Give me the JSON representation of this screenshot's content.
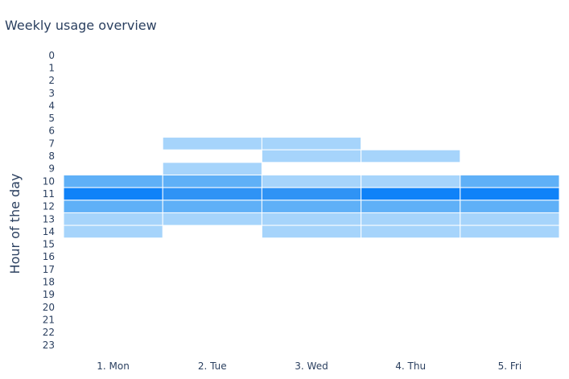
{
  "chart_data": {
    "type": "heatmap",
    "title": "Weekly usage overview",
    "xlabel": "",
    "ylabel": "Hour of the day",
    "x_categories": [
      "1. Mon",
      "2. Tue",
      "3. Wed",
      "4. Thu",
      "5. Fri"
    ],
    "y_categories": [
      "0",
      "1",
      "2",
      "3",
      "4",
      "5",
      "6",
      "7",
      "8",
      "9",
      "10",
      "11",
      "12",
      "13",
      "14",
      "15",
      "16",
      "17",
      "18",
      "19",
      "20",
      "21",
      "22",
      "23"
    ],
    "cells": [
      {
        "x": "1. Mon",
        "y": "10",
        "value": 2
      },
      {
        "x": "1. Mon",
        "y": "11",
        "value": 5
      },
      {
        "x": "1. Mon",
        "y": "12",
        "value": 2
      },
      {
        "x": "1. Mon",
        "y": "13",
        "value": 1
      },
      {
        "x": "1. Mon",
        "y": "14",
        "value": 1
      },
      {
        "x": "2. Tue",
        "y": "7",
        "value": 1
      },
      {
        "x": "2. Tue",
        "y": "9",
        "value": 1
      },
      {
        "x": "2. Tue",
        "y": "10",
        "value": 2
      },
      {
        "x": "2. Tue",
        "y": "11",
        "value": 4
      },
      {
        "x": "2. Tue",
        "y": "12",
        "value": 2
      },
      {
        "x": "2. Tue",
        "y": "13",
        "value": 1
      },
      {
        "x": "3. Wed",
        "y": "7",
        "value": 1
      },
      {
        "x": "3. Wed",
        "y": "8",
        "value": 1
      },
      {
        "x": "3. Wed",
        "y": "10",
        "value": 1
      },
      {
        "x": "3. Wed",
        "y": "11",
        "value": 4
      },
      {
        "x": "3. Wed",
        "y": "12",
        "value": 2
      },
      {
        "x": "3. Wed",
        "y": "13",
        "value": 1
      },
      {
        "x": "3. Wed",
        "y": "14",
        "value": 1
      },
      {
        "x": "4. Thu",
        "y": "8",
        "value": 1
      },
      {
        "x": "4. Thu",
        "y": "10",
        "value": 1
      },
      {
        "x": "4. Thu",
        "y": "11",
        "value": 5
      },
      {
        "x": "4. Thu",
        "y": "12",
        "value": 2
      },
      {
        "x": "4. Thu",
        "y": "13",
        "value": 1
      },
      {
        "x": "4. Thu",
        "y": "14",
        "value": 1
      },
      {
        "x": "5. Fri",
        "y": "10",
        "value": 2
      },
      {
        "x": "5. Fri",
        "y": "11",
        "value": 5
      },
      {
        "x": "5. Fri",
        "y": "12",
        "value": 2
      },
      {
        "x": "5. Fri",
        "y": "13",
        "value": 1
      },
      {
        "x": "5. Fri",
        "y": "14",
        "value": 1
      }
    ],
    "value_range": [
      0,
      5
    ],
    "colorscale": [
      "#cce9ff",
      "#a6d4fb",
      "#5fb0f7",
      "#2f93f5",
      "#0f82f8"
    ],
    "grid": false,
    "legend": "none"
  }
}
